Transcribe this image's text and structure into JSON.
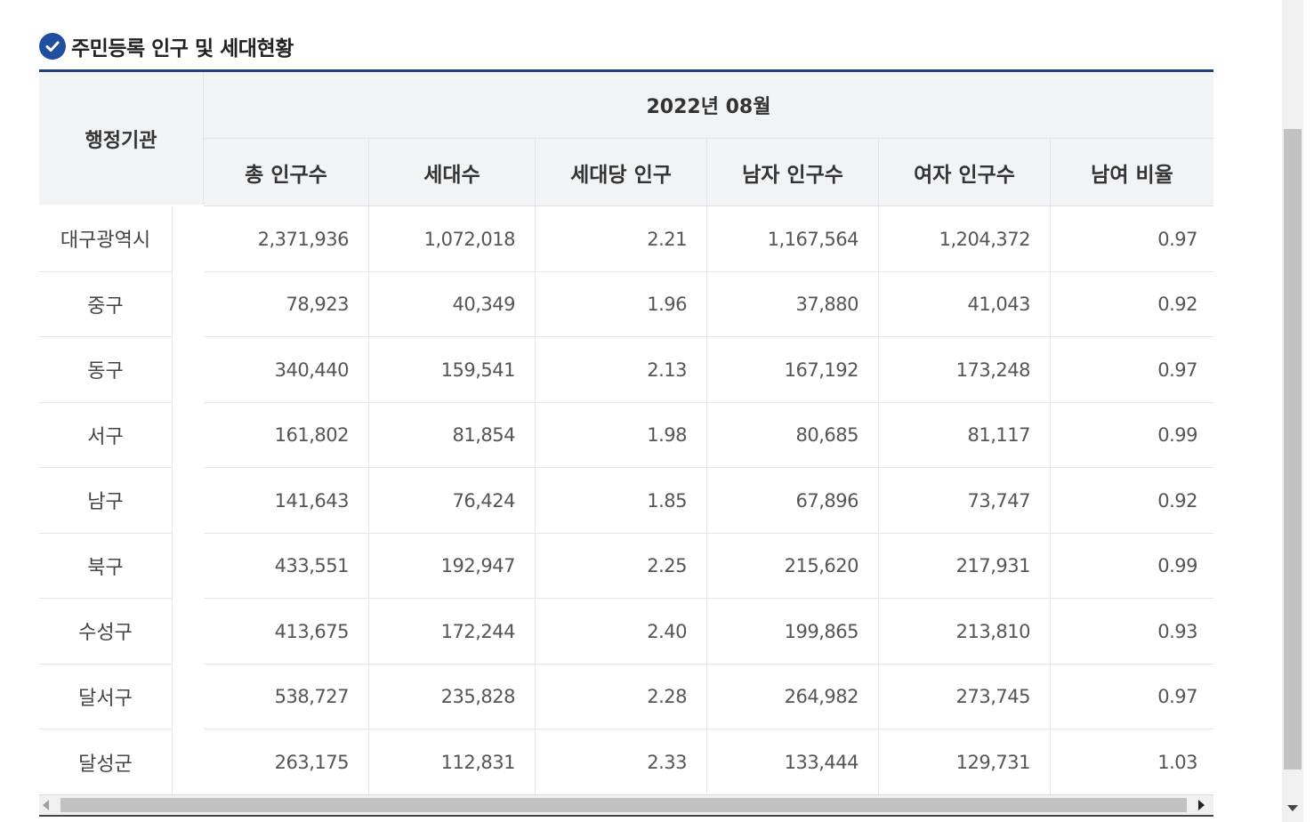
{
  "section": {
    "title": "주민등록 인구 및 세대현황",
    "icon": "check-circle-icon"
  },
  "table": {
    "agency_header": "행정기관",
    "period_header": "2022년 08월",
    "columns": [
      "총 인구수",
      "세대수",
      "세대당 인구",
      "남자 인구수",
      "여자 인구수",
      "남여 비율"
    ],
    "rows": [
      {
        "name": "대구광역시",
        "values": [
          "2,371,936",
          "1,072,018",
          "2.21",
          "1,167,564",
          "1,204,372",
          "0.97"
        ]
      },
      {
        "name": "중구",
        "values": [
          "78,923",
          "40,349",
          "1.96",
          "37,880",
          "41,043",
          "0.92"
        ]
      },
      {
        "name": "동구",
        "values": [
          "340,440",
          "159,541",
          "2.13",
          "167,192",
          "173,248",
          "0.97"
        ]
      },
      {
        "name": "서구",
        "values": [
          "161,802",
          "81,854",
          "1.98",
          "80,685",
          "81,117",
          "0.99"
        ]
      },
      {
        "name": "남구",
        "values": [
          "141,643",
          "76,424",
          "1.85",
          "67,896",
          "73,747",
          "0.92"
        ]
      },
      {
        "name": "북구",
        "values": [
          "433,551",
          "192,947",
          "2.25",
          "215,620",
          "217,931",
          "0.99"
        ]
      },
      {
        "name": "수성구",
        "values": [
          "413,675",
          "172,244",
          "2.40",
          "199,865",
          "213,810",
          "0.93"
        ]
      },
      {
        "name": "달서구",
        "values": [
          "538,727",
          "235,828",
          "2.28",
          "264,982",
          "273,745",
          "0.97"
        ]
      },
      {
        "name": "달성군",
        "values": [
          "263,175",
          "112,831",
          "2.33",
          "133,444",
          "129,731",
          "1.03"
        ]
      }
    ]
  },
  "colors": {
    "accent": "#1f4f9e",
    "header_bg": "#f2f3f5",
    "top_rule": "#1f3f7f"
  }
}
